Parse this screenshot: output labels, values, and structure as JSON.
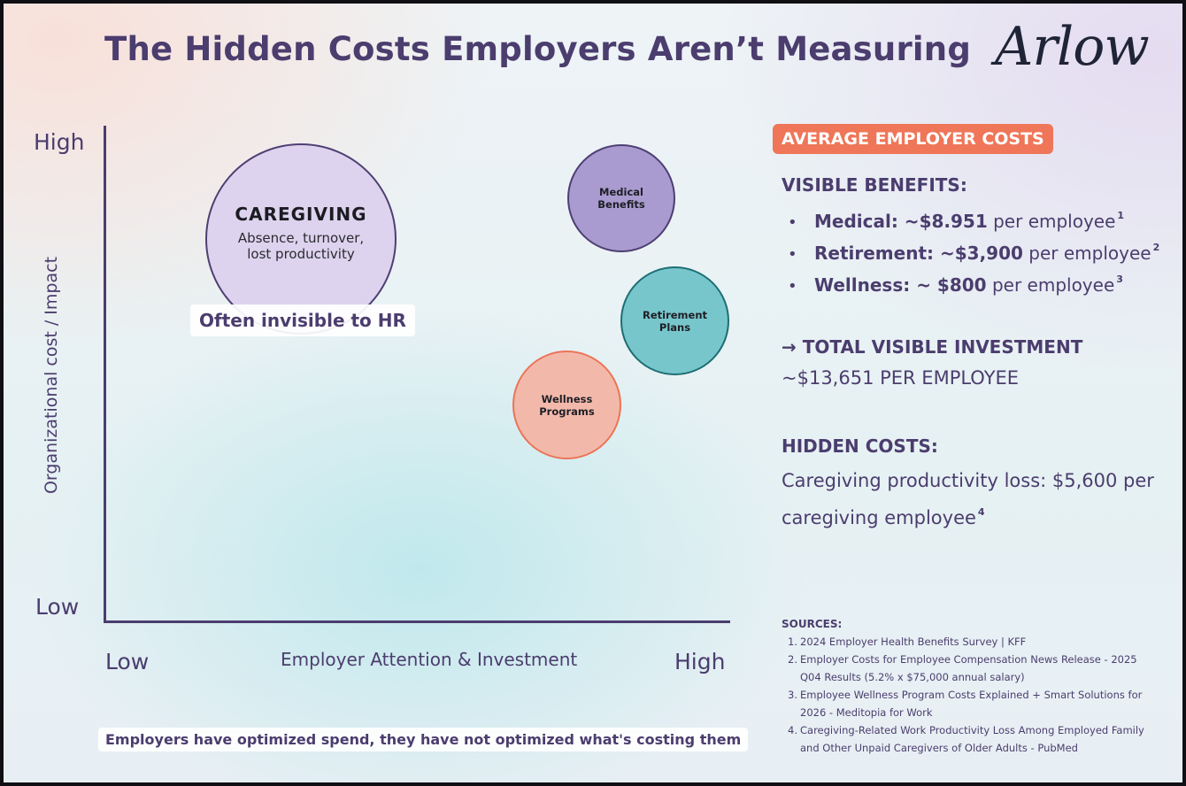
{
  "title": "The Hidden Costs Employers Aren’t Measuring",
  "logo": "Arlow",
  "chart": {
    "y_axis": {
      "label": "Organizational cost / Impact",
      "high": "High",
      "low": "Low"
    },
    "x_axis": {
      "label": "Employer Attention & Investment",
      "low": "Low",
      "high": "High"
    },
    "caregiving": {
      "title": "CAREGIVING",
      "subtitle": "Absence, turnover, lost productivity",
      "callout": "Often invisible to HR"
    },
    "bubbles": {
      "medical": "Medical Benefits",
      "retirement": "Retirement Plans",
      "wellness": "Wellness Programs"
    },
    "colors": {
      "caregiving": "#ddd3ee",
      "medical": "#a99bd0",
      "retirement": "#77c6cb",
      "wellness": "#f2b9ab"
    },
    "bottom_note": "Employers have optimized spend, they have not optimized what's costing them"
  },
  "panel": {
    "badge": "AVERAGE EMPLOYER COSTS",
    "visible_heading": "VISIBLE BENEFITS:",
    "visible_items": [
      {
        "label": "Medical: ~$8.951",
        "rest": "per employee",
        "sup": "1"
      },
      {
        "label": "Retirement: ~$3,900",
        "rest": "per employee",
        "sup": "2"
      },
      {
        "label": "Wellness: ~ $800",
        "rest": "per employee",
        "sup": "3"
      }
    ],
    "total_heading": "→ TOTAL VISIBLE INVESTMENT",
    "total_value": "~$13,651 PER EMPLOYEE",
    "hidden_heading": "HIDDEN COSTS:",
    "hidden_text": "Caregiving productivity loss: $5,600 per caregiving employee",
    "hidden_sup": "4",
    "accent_color": "#ef7658",
    "sources_title": "SOURCES:",
    "sources": [
      {
        "n": "1.",
        "text": "2024 Employer Health Benefits Survey | KFF"
      },
      {
        "n": "2.",
        "text": "Employer Costs for Employee Compensation News Release - 2025 Q04 Results (5.2% x $75,000 annual salary)"
      },
      {
        "n": "3.",
        "text": "Employee Wellness Program Costs Explained + Smart Solutions for 2026 - Meditopia for Work"
      },
      {
        "n": "4.",
        "text": "Caregiving-Related Work Productivity Loss Among Employed Family and Other Unpaid Caregivers of Older Adults - PubMed"
      }
    ]
  }
}
